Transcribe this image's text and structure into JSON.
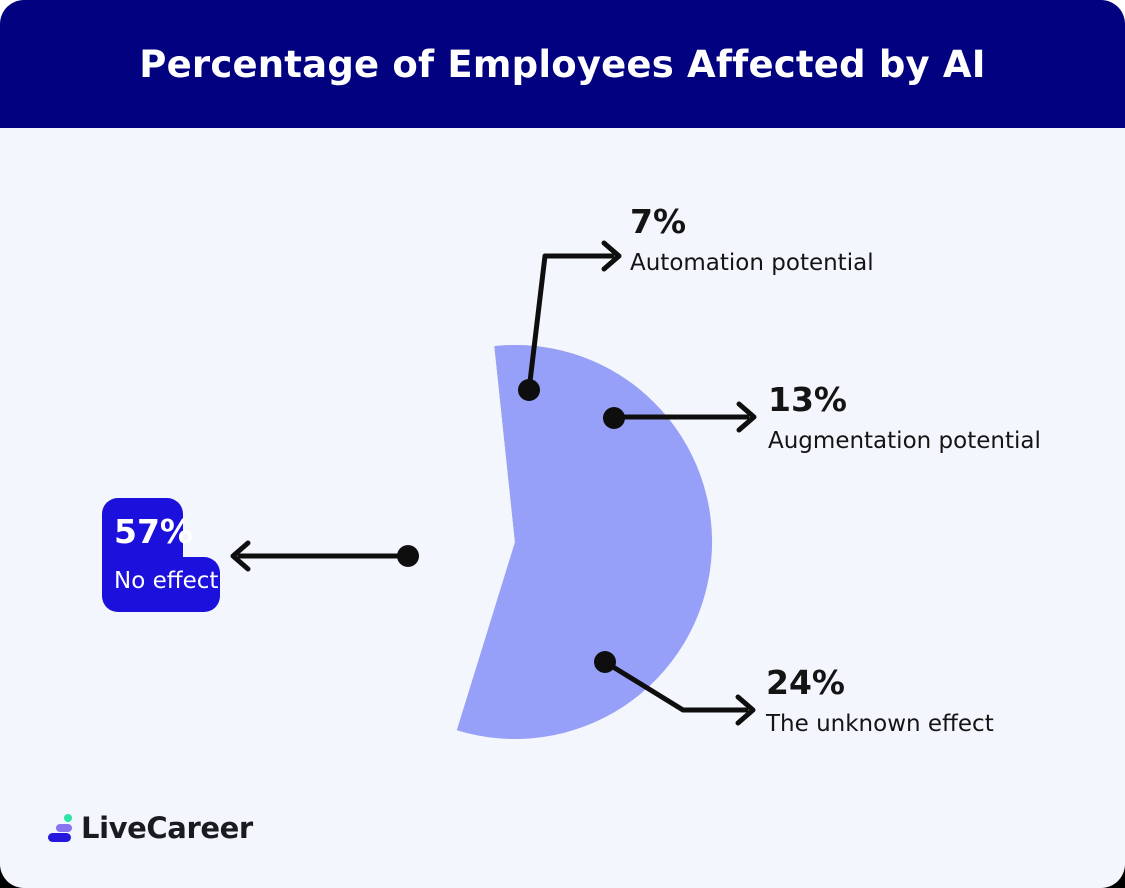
{
  "header": {
    "title": "Percentage of Employees Affected by AI",
    "background": "#020180",
    "text_color": "#FFFFFF"
  },
  "chart_data": {
    "type": "pie",
    "title": "Percentage of Employees Affected by AI",
    "start_angle_deg": -6,
    "legend_position": "callouts",
    "segments": [
      {
        "label": "Automation potential",
        "value": 7,
        "color": "#FCC72B"
      },
      {
        "label": "Augmentation potential",
        "value": 13,
        "color": "#0EBE6E"
      },
      {
        "label": "The unknown effect",
        "value": 24,
        "color": "#E9BEE9"
      },
      {
        "label": "No effect",
        "value": 57,
        "color": "#97A0F8"
      }
    ]
  },
  "labels": {
    "automation": {
      "pct": "7%",
      "text": "Automation potential"
    },
    "augmentation": {
      "pct": "13%",
      "text": "Augmentation potential"
    },
    "unknown": {
      "pct": "24%",
      "text": "The unknown effect"
    },
    "no_effect": {
      "pct": "57%",
      "text": "No effect"
    }
  },
  "badge": {
    "background": "#1C10DC",
    "text_color": "#FFFFFF"
  },
  "footer": {
    "logo_text": "LiveCareer"
  },
  "colors": {
    "canvas_background": "#F3F6FC",
    "page_background": "#FFFFFF",
    "callout_color": "#0E0E0E",
    "logo_dot_green": "#2EE3A6",
    "logo_pill_purple": "#8A73F1",
    "logo_pill_blue": "#2517DD"
  }
}
